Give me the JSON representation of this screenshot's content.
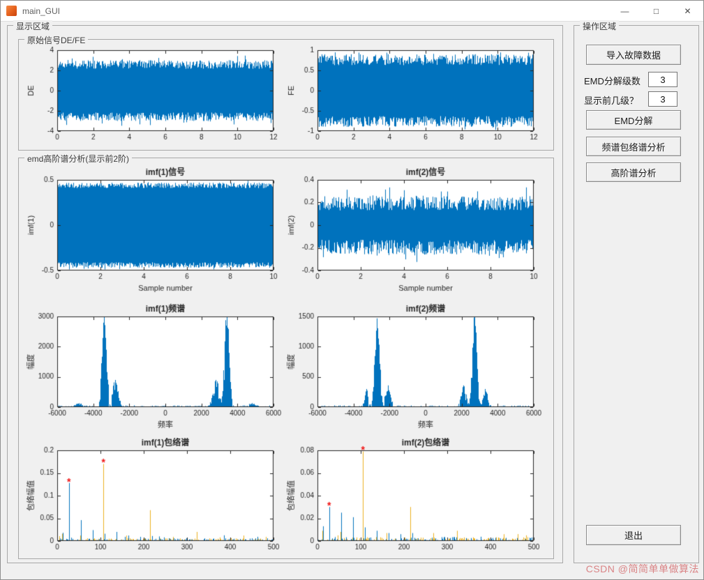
{
  "window": {
    "title": "main_GUI",
    "controls": {
      "minimize": "—",
      "maximize": "□",
      "close": "✕"
    }
  },
  "panels": {
    "display": {
      "label": "显示区域",
      "groups": {
        "original": {
          "label": "原始信号DE/FE"
        },
        "emd": {
          "label": "emd高阶谱分析(显示前2阶)"
        }
      }
    },
    "control": {
      "label": "操作区域",
      "import_button": "导入故障数据",
      "emd_level_label": "EMD分解级数",
      "emd_level_value": "3",
      "show_levels_label": "显示前几级？",
      "show_levels_value": "3",
      "emd_button": "EMD分解",
      "spectrum_button": "频谱包络谱分析",
      "hos_button": "高阶谱分析",
      "exit_button": "退出"
    }
  },
  "watermark": "CSDN @简简单单做算法",
  "chart_style": {
    "signal_color": "#0072BD",
    "secondary_color": "#EDB120",
    "marker_color": "#f01414",
    "axis_color": "#262626"
  },
  "chart_data": [
    {
      "id": "de",
      "type": "noise",
      "title": "",
      "xlabel": "",
      "ylabel": "DE",
      "xlim": [
        0,
        12
      ],
      "ylim": [
        -4,
        4
      ],
      "xticks": [
        0,
        2,
        4,
        6,
        8,
        10,
        12
      ],
      "yticks": [
        -4,
        -2,
        0,
        2,
        4
      ],
      "amp": 3.0,
      "jitter": 0.28,
      "outlier_rate": 0.05,
      "outlier_scale": 1.16,
      "seed": 11
    },
    {
      "id": "fe",
      "type": "noise",
      "title": "",
      "xlabel": "",
      "ylabel": "FE",
      "xlim": [
        0,
        12
      ],
      "ylim": [
        -1,
        1
      ],
      "xticks": [
        0,
        2,
        4,
        6,
        8,
        10,
        12
      ],
      "yticks": [
        -1,
        -0.5,
        0,
        0.5,
        1
      ],
      "amp": 0.9,
      "jitter": 0.3,
      "outlier_rate": 0.05,
      "outlier_scale": 1.08,
      "seed": 22
    },
    {
      "id": "imf1sig",
      "type": "noise",
      "title": "imf(1)信号",
      "xlabel": "Sample number",
      "ylabel": "imf(1)",
      "xlim": [
        0,
        10
      ],
      "ylim": [
        -0.5,
        0.5
      ],
      "xticks": [
        0,
        2,
        4,
        6,
        8,
        10
      ],
      "yticks": [
        -0.5,
        0,
        0.5
      ],
      "amp": 0.47,
      "jitter": 0.13,
      "outlier_rate": 0.02,
      "outlier_scale": 1.05,
      "seed": 33
    },
    {
      "id": "imf2sig",
      "type": "noise",
      "title": "imf(2)信号",
      "xlabel": "Sample number",
      "ylabel": "imf(2)",
      "xlim": [
        0,
        10
      ],
      "ylim": [
        -0.4,
        0.4
      ],
      "xticks": [
        0,
        2,
        4,
        6,
        8,
        10
      ],
      "yticks": [
        -0.4,
        -0.2,
        0,
        0.2,
        0.4
      ],
      "amp": 0.26,
      "jitter": 0.5,
      "outlier_rate": 0.07,
      "outlier_scale": 1.3,
      "seed": 44
    },
    {
      "id": "imf1spec",
      "type": "spectrum",
      "title": "imf(1)频谱",
      "xlabel": "频率",
      "ylabel": "幅度",
      "xlim": [
        -6000,
        6000
      ],
      "ylim": [
        0,
        3000
      ],
      "xticks": [
        -6000,
        -4000,
        -2000,
        0,
        2000,
        4000,
        6000
      ],
      "yticks": [
        0,
        1000,
        2000,
        3000
      ],
      "noise_floor": 60,
      "clusters": [
        {
          "center": -3400,
          "spread": 260,
          "peak": 3000,
          "count": 70
        },
        {
          "center": 3400,
          "spread": 260,
          "peak": 3250,
          "count": 70
        },
        {
          "center": -2800,
          "spread": 350,
          "peak": 900,
          "count": 50
        },
        {
          "center": 2800,
          "spread": 350,
          "peak": 900,
          "count": 50
        },
        {
          "center": -4800,
          "spread": 500,
          "peak": 130,
          "count": 40
        },
        {
          "center": 4800,
          "spread": 500,
          "peak": 130,
          "count": 40
        }
      ],
      "seed": 55
    },
    {
      "id": "imf2spec",
      "type": "spectrum",
      "title": "imf(2)频谱",
      "xlabel": "频率",
      "ylabel": "幅度",
      "xlim": [
        -6000,
        6000
      ],
      "ylim": [
        0,
        1500
      ],
      "xticks": [
        -6000,
        -4000,
        -2000,
        0,
        2000,
        4000,
        6000
      ],
      "yticks": [
        0,
        500,
        1000,
        1500
      ],
      "noise_floor": 30,
      "clusters": [
        {
          "center": -2700,
          "spread": 280,
          "peak": 1470,
          "count": 70
        },
        {
          "center": 2700,
          "spread": 280,
          "peak": 1500,
          "count": 70
        },
        {
          "center": -2100,
          "spread": 300,
          "peak": 360,
          "count": 40
        },
        {
          "center": 2100,
          "spread": 300,
          "peak": 360,
          "count": 40
        },
        {
          "center": -3300,
          "spread": 250,
          "peak": 300,
          "count": 30
        },
        {
          "center": 3300,
          "spread": 250,
          "peak": 300,
          "count": 30
        }
      ],
      "seed": 66
    },
    {
      "id": "imf1env",
      "type": "envelope",
      "title": "imf(1)包络谱",
      "xlabel": "",
      "ylabel": "包络幅值",
      "xlim": [
        0,
        500
      ],
      "ylim": [
        0,
        0.2
      ],
      "xticks": [
        0,
        100,
        200,
        300,
        400,
        500
      ],
      "yticks": [
        0,
        0.05,
        0.1,
        0.15,
        0.2
      ],
      "noise_floor": 0.006,
      "series": [
        {
          "color": "blue",
          "spikes": [
            [
              27,
              0.128
            ],
            [
              13,
              0.018
            ],
            [
              55,
              0.046
            ],
            [
              82,
              0.024
            ],
            [
              110,
              0.016
            ],
            [
              137,
              0.02
            ],
            [
              165,
              0.012
            ],
            [
              192,
              0.009
            ],
            [
              220,
              0.011
            ],
            [
              247,
              0.008
            ],
            [
              300,
              0.006
            ],
            [
              340,
              0.005
            ]
          ]
        },
        {
          "color": "orange",
          "spikes": [
            [
              107,
              0.17
            ],
            [
              215,
              0.068
            ],
            [
              12,
              0.016
            ],
            [
              53,
              0.012
            ],
            [
              160,
              0.012
            ],
            [
              268,
              0.009
            ],
            [
              322,
              0.02
            ],
            [
              375,
              0.008
            ],
            [
              430,
              0.012
            ],
            [
              483,
              0.009
            ]
          ]
        }
      ],
      "markers": [
        [
          27,
          0.128
        ],
        [
          107,
          0.17
        ]
      ],
      "seed": 77
    },
    {
      "id": "imf2env",
      "type": "envelope",
      "title": "imf(2)包络谱",
      "xlabel": "",
      "ylabel": "包络幅值",
      "xlim": [
        0,
        500
      ],
      "ylim": [
        0,
        0.08
      ],
      "xticks": [
        0,
        100,
        200,
        300,
        400,
        500
      ],
      "yticks": [
        0,
        0.02,
        0.04,
        0.06,
        0.08
      ],
      "noise_floor": 0.0035,
      "series": [
        {
          "color": "blue",
          "spikes": [
            [
              27,
              0.03
            ],
            [
              13,
              0.013
            ],
            [
              55,
              0.025
            ],
            [
              82,
              0.021
            ],
            [
              110,
              0.012
            ],
            [
              137,
              0.009
            ],
            [
              165,
              0.007
            ],
            [
              192,
              0.006
            ],
            [
              220,
              0.007
            ]
          ]
        },
        {
          "color": "orange",
          "spikes": [
            [
              105,
              0.079
            ],
            [
              215,
              0.03
            ],
            [
              12,
              0.009
            ],
            [
              53,
              0.008
            ],
            [
              160,
              0.007
            ],
            [
              268,
              0.007
            ],
            [
              322,
              0.009
            ],
            [
              430,
              0.006
            ],
            [
              483,
              0.005
            ]
          ]
        }
      ],
      "markers": [
        [
          27,
          0.03
        ],
        [
          105,
          0.079
        ]
      ],
      "seed": 88
    }
  ]
}
